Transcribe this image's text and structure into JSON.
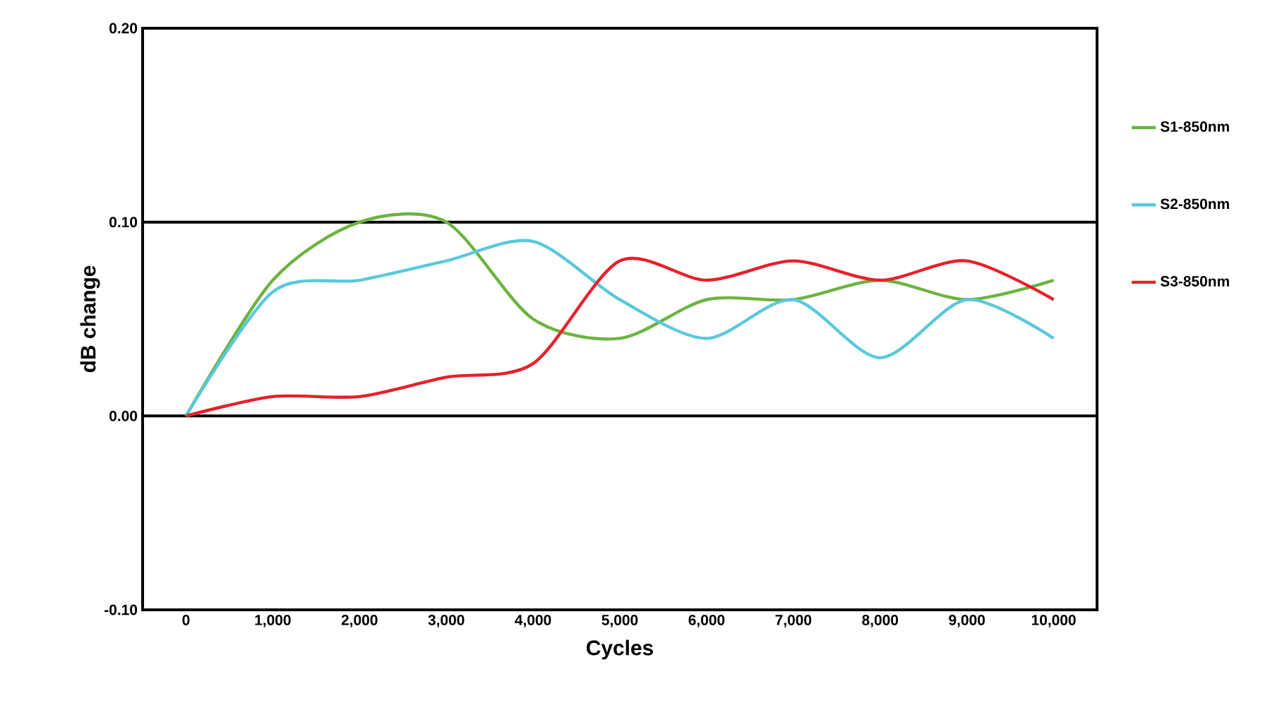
{
  "chart_data": {
    "type": "line",
    "xlabel": "Cycles",
    "ylabel": "dB change",
    "x": [
      0,
      1000,
      2000,
      3000,
      4000,
      5000,
      6000,
      7000,
      8000,
      9000,
      10000
    ],
    "series": [
      {
        "name": "S1-850nm",
        "color": "#6cb33f",
        "values": [
          0,
          0.07,
          0.1,
          0.1,
          0.05,
          0.04,
          0.06,
          0.06,
          0.07,
          0.06,
          0.07
        ]
      },
      {
        "name": "S2-850nm",
        "color": "#5bc8dc",
        "values": [
          0,
          0.064,
          0.07,
          0.08,
          0.09,
          0.06,
          0.04,
          0.06,
          0.03,
          0.06,
          0.04
        ]
      },
      {
        "name": "S3-850nm",
        "color": "#e8202a",
        "values": [
          0,
          0.01,
          0.01,
          0.02,
          0.027,
          0.08,
          0.07,
          0.08,
          0.07,
          0.08,
          0.06
        ]
      }
    ],
    "xlim": [
      -500,
      10500
    ],
    "xticks": [
      0,
      {
        "value": 1000,
        "label": "1,000"
      },
      {
        "value": 2000,
        "label": "2,000"
      },
      {
        "value": 3000,
        "label": "3,000"
      },
      {
        "value": 4000,
        "label": "4,000"
      },
      {
        "value": 5000,
        "label": "5,000"
      },
      {
        "value": 6000,
        "label": "6,000"
      },
      {
        "value": 7000,
        "label": "7,000"
      },
      {
        "value": 8000,
        "label": "8,000"
      },
      {
        "value": 9000,
        "label": "9,000"
      },
      {
        "value": 10000,
        "label": "10,000"
      }
    ],
    "ylim": [
      -0.1,
      0.2
    ],
    "yticks": [
      {
        "value": -0.1,
        "label": "-0.10"
      },
      {
        "value": 0,
        "label": "0.00"
      },
      {
        "value": 0.1,
        "label": "0.10"
      },
      {
        "value": 0.2,
        "label": "0.20"
      }
    ],
    "grid": "y",
    "legend": "right",
    "marker": "none",
    "line_style": "solid"
  }
}
